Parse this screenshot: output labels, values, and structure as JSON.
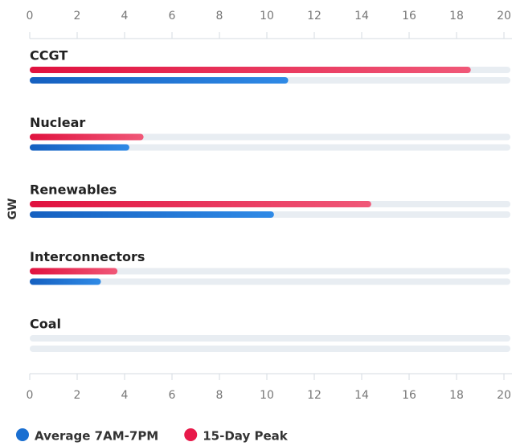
{
  "chart_data": {
    "type": "bar",
    "orientation": "horizontal",
    "axis_label": "GW",
    "categories": [
      "CCGT",
      "Nuclear",
      "Renewables",
      "Interconnectors",
      "Coal"
    ],
    "series": [
      {
        "name": "Average 7AM-7PM",
        "color": "#1a6fd1",
        "values": [
          10.9,
          4.2,
          10.3,
          3.0,
          0
        ]
      },
      {
        "name": "15-Day Peak",
        "color": "#e8194a",
        "values": [
          18.6,
          4.8,
          14.4,
          3.7,
          0
        ]
      }
    ],
    "xlim": [
      0,
      20
    ],
    "xticks": [
      0,
      2,
      4,
      6,
      8,
      10,
      12,
      14,
      16,
      18,
      20
    ]
  }
}
